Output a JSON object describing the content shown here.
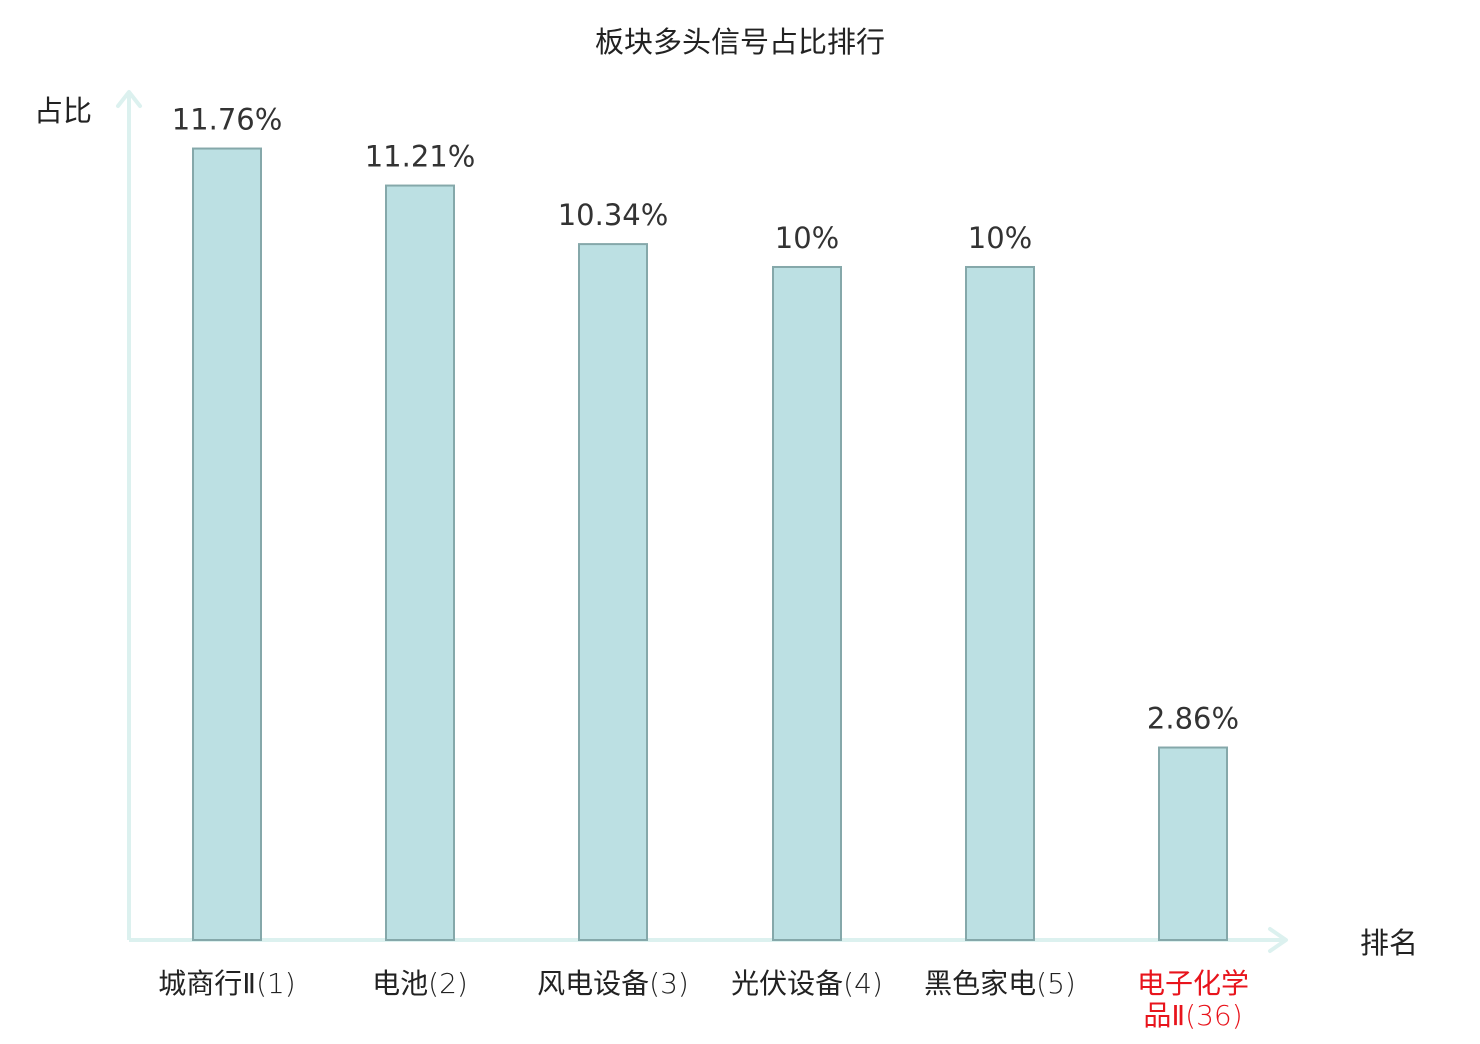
{
  "chart_data": {
    "type": "bar",
    "title": "板块多头信号占比排行",
    "xlabel": "排名",
    "ylabel": "占比",
    "ylim": [
      0,
      12.6
    ],
    "grid": false,
    "categories": [
      {
        "name": "城商行Ⅱ",
        "rank": "(1)"
      },
      {
        "name": "电池",
        "rank": "(2)"
      },
      {
        "name": "风电设备",
        "rank": "(3)"
      },
      {
        "name": "光伏设备",
        "rank": "(4)"
      },
      {
        "name": "黑色家电",
        "rank": "(5)"
      },
      {
        "name": "电子化学品Ⅱ",
        "rank": "(36)",
        "highlight": true
      }
    ],
    "values": [
      11.76,
      11.21,
      10.34,
      10.0,
      10.0,
      2.86
    ],
    "value_labels": [
      "11.76%",
      "11.21%",
      "10.34%",
      "10%",
      "10%",
      "2.86%"
    ]
  },
  "colors": {
    "bar_fill": "#bce0e3",
    "bar_stroke": "#85a8aa",
    "axis": "#dcf1ef",
    "text": "#333333",
    "label_text": "#222222",
    "highlight_text": "#e8141c"
  }
}
